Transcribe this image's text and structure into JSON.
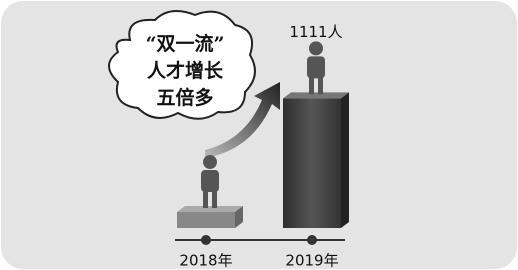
{
  "chart_data": {
    "type": "bar",
    "annotation": [
      "“双一流”",
      "人才增长",
      "五倍多"
    ],
    "categories": [
      "2018年",
      "2019年"
    ],
    "values": [
      137,
      1111
    ],
    "value_labels": [
      null,
      "1111人"
    ],
    "color": "#4a4a4a",
    "ylim": [
      0,
      1200
    ]
  }
}
